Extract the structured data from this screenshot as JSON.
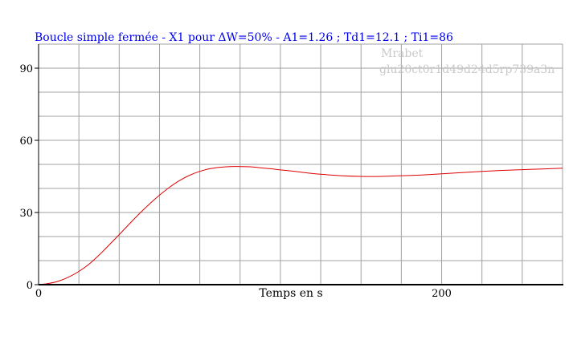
{
  "chart_data": {
    "type": "line",
    "title": "Boucle simple fermée - X1 pour ΔW=50% - A1=1.26 ; Td1=12.1 ; Ti1=86",
    "xlabel": "Temps en s",
    "ylabel": "",
    "xlim": [
      0,
      260
    ],
    "ylim": [
      0,
      100
    ],
    "x_ticks": [
      "0",
      "200"
    ],
    "x_tick_values": [
      0,
      200
    ],
    "y_ticks": [
      "0",
      "30",
      "60",
      "90"
    ],
    "y_tick_values": [
      0,
      30,
      60,
      90
    ],
    "x_grid_step": 20,
    "y_grid_step": 10,
    "grid": true,
    "watermark": [
      "Mrabet",
      "glu20ct0r1d49d24d5rp739a3n"
    ],
    "colors": {
      "title": "#0000ee",
      "series": "#dd0000",
      "grid": "#a0a0a0",
      "axis": "#000000",
      "watermark": "#c9c9c9"
    },
    "series": [
      {
        "x": [
          0,
          5,
          10,
          15,
          20,
          25,
          30,
          35,
          40,
          45,
          50,
          55,
          60,
          65,
          70,
          75,
          80,
          85,
          90,
          95,
          100,
          105,
          110,
          115,
          120,
          125,
          130,
          135,
          140,
          150,
          160,
          170,
          180,
          190,
          200,
          210,
          220,
          230,
          240,
          250,
          260
        ],
        "values": [
          0,
          0.5,
          1.5,
          3.2,
          5.5,
          8.5,
          12.3,
          16.5,
          20.8,
          25.2,
          29.5,
          33.5,
          37.2,
          40.5,
          43.3,
          45.5,
          47.1,
          48.2,
          48.8,
          49.1,
          49.1,
          49.0,
          48.6,
          48.2,
          47.7,
          47.3,
          46.8,
          46.3,
          45.9,
          45.3,
          45.0,
          45.0,
          45.3,
          45.6,
          46.1,
          46.6,
          47.1,
          47.5,
          47.8,
          48.1,
          48.4
        ]
      }
    ]
  }
}
